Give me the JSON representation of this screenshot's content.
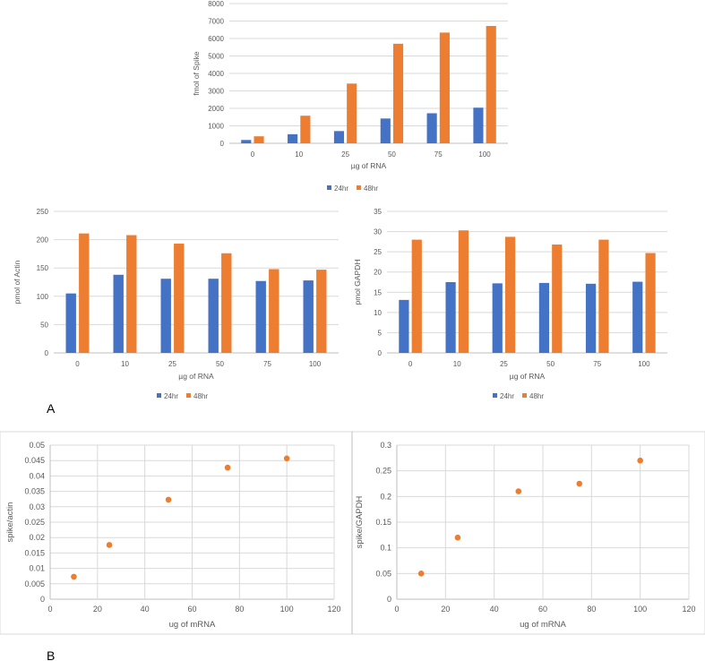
{
  "colors": {
    "series_24": "#4472C4",
    "series_48": "#ED7D31",
    "grid": "#d9d9d9",
    "axis": "#bfbfbf",
    "text": "#595959"
  },
  "panel_labels": {
    "a": "A",
    "b": "B"
  },
  "chart_data": [
    {
      "id": "spike",
      "type": "bar",
      "categories": [
        "0",
        "10",
        "25",
        "50",
        "75",
        "100"
      ],
      "series": [
        {
          "name": "24hr",
          "values": [
            190,
            520,
            700,
            1420,
            1720,
            2040
          ]
        },
        {
          "name": "48hr",
          "values": [
            400,
            1580,
            3420,
            5700,
            6340,
            6720
          ]
        }
      ],
      "xlabel": "µg of RNA",
      "ylabel": "fmol of Spike",
      "ylim": [
        0,
        8000
      ],
      "yticks": [
        0,
        1000,
        2000,
        3000,
        4000,
        5000,
        6000,
        7000,
        8000
      ],
      "grid": true,
      "legend": "bottom"
    },
    {
      "id": "actin",
      "type": "bar",
      "categories": [
        "0",
        "10",
        "25",
        "50",
        "75",
        "100"
      ],
      "series": [
        {
          "name": "24hr",
          "values": [
            105,
            138,
            131,
            131,
            127,
            128
          ]
        },
        {
          "name": "48hr",
          "values": [
            211,
            208,
            193,
            176,
            148,
            147
          ]
        }
      ],
      "xlabel": "µg of RNA",
      "ylabel": "pmol of Actin",
      "ylim": [
        0,
        250
      ],
      "yticks": [
        0,
        50,
        100,
        150,
        200,
        250
      ],
      "grid": true,
      "legend": "bottom"
    },
    {
      "id": "gapdh",
      "type": "bar",
      "categories": [
        "0",
        "10",
        "25",
        "50",
        "75",
        "100"
      ],
      "series": [
        {
          "name": "24hr",
          "values": [
            13.1,
            17.5,
            17.2,
            17.3,
            17.1,
            17.6
          ]
        },
        {
          "name": "48hr",
          "values": [
            28,
            30.3,
            28.7,
            26.8,
            28,
            24.7
          ]
        }
      ],
      "xlabel": "µg of RNA",
      "ylabel": "pmol GAPDH",
      "ylim": [
        0,
        35
      ],
      "yticks": [
        0,
        5,
        10,
        15,
        20,
        25,
        30,
        35
      ],
      "grid": true,
      "legend": "bottom"
    },
    {
      "id": "spike_actin",
      "type": "scatter",
      "x": [
        10,
        25,
        50,
        75,
        100
      ],
      "y": [
        0.0073,
        0.0176,
        0.0323,
        0.0427,
        0.0457
      ],
      "xlabel": "ug of mRNA",
      "ylabel": "spike/actin",
      "xlim": [
        0,
        120
      ],
      "ylim": [
        0,
        0.05
      ],
      "xticks": [
        0,
        20,
        40,
        60,
        80,
        100,
        120
      ],
      "yticks": [
        "0",
        "0.005",
        "0.01",
        "0.015",
        "0.02",
        "0.025",
        "0.03",
        "0.035",
        "0.04",
        "0.045",
        "0.05"
      ],
      "grid": true
    },
    {
      "id": "spike_gapdh",
      "type": "scatter",
      "x": [
        10,
        25,
        50,
        75,
        100
      ],
      "y": [
        0.05,
        0.12,
        0.21,
        0.225,
        0.27
      ],
      "xlabel": "ug of mRNA",
      "ylabel": "spike/GAPDH",
      "xlim": [
        0,
        120
      ],
      "ylim": [
        0,
        0.3
      ],
      "xticks": [
        0,
        20,
        40,
        60,
        80,
        100,
        120
      ],
      "yticks": [
        "0",
        "0.05",
        "0.1",
        "0.15",
        "0.2",
        "0.25",
        "0.3"
      ],
      "grid": true
    }
  ]
}
